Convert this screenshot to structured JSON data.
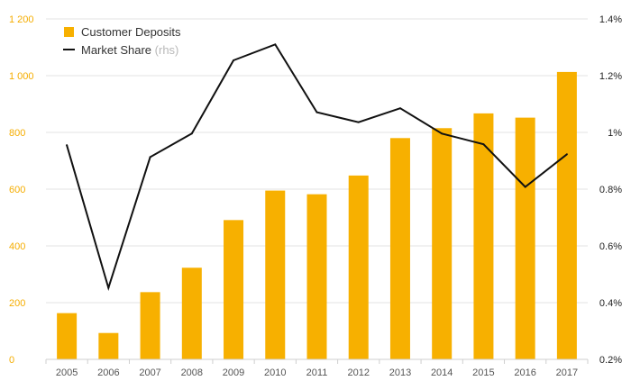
{
  "chart_data": {
    "type": "bar",
    "categories": [
      "2005",
      "2006",
      "2007",
      "2008",
      "2009",
      "2010",
      "2011",
      "2012",
      "2013",
      "2014",
      "2015",
      "2016",
      "2017"
    ],
    "series": [
      {
        "name": "Customer Deposits",
        "type": "bar",
        "axis": "left",
        "color": "#f7b000",
        "values": [
          163,
          93,
          237,
          323,
          491,
          595,
          582,
          648,
          780,
          815,
          867,
          852,
          1013
        ]
      },
      {
        "name": "Market Share",
        "type": "line",
        "axis": "right",
        "color": "#111111",
        "values": [
          0.955,
          0.452,
          0.913,
          0.996,
          1.254,
          1.31,
          1.071,
          1.036,
          1.085,
          0.996,
          0.958,
          0.808,
          0.923
        ]
      }
    ],
    "legend": {
      "position": "top-left",
      "items": [
        {
          "label": "Customer Deposits",
          "suffix": "",
          "marker": "square",
          "color": "#f7b000"
        },
        {
          "label": "Market Share",
          "suffix": "(rhs)",
          "marker": "line",
          "color": "#111111"
        }
      ]
    },
    "y_left": {
      "ylim": [
        0,
        1200
      ],
      "ticks": [
        0,
        200,
        400,
        600,
        800,
        1000,
        1200
      ],
      "tick_labels": [
        "0",
        "200",
        "400",
        "600",
        "800",
        "1 000",
        "1 200"
      ],
      "color": "#f5ad00"
    },
    "y_right": {
      "ylim": [
        0.2,
        1.4
      ],
      "ticks": [
        0.2,
        0.4,
        0.6,
        0.8,
        1.0,
        1.2,
        1.4
      ],
      "tick_labels": [
        "0.2%",
        "0.4%",
        "0.6%",
        "0.8%",
        "1%",
        "1.2%",
        "1.4%"
      ],
      "color": "#222222"
    },
    "grid": "horizontal",
    "title": "",
    "xlabel": "",
    "ylabel": ""
  }
}
